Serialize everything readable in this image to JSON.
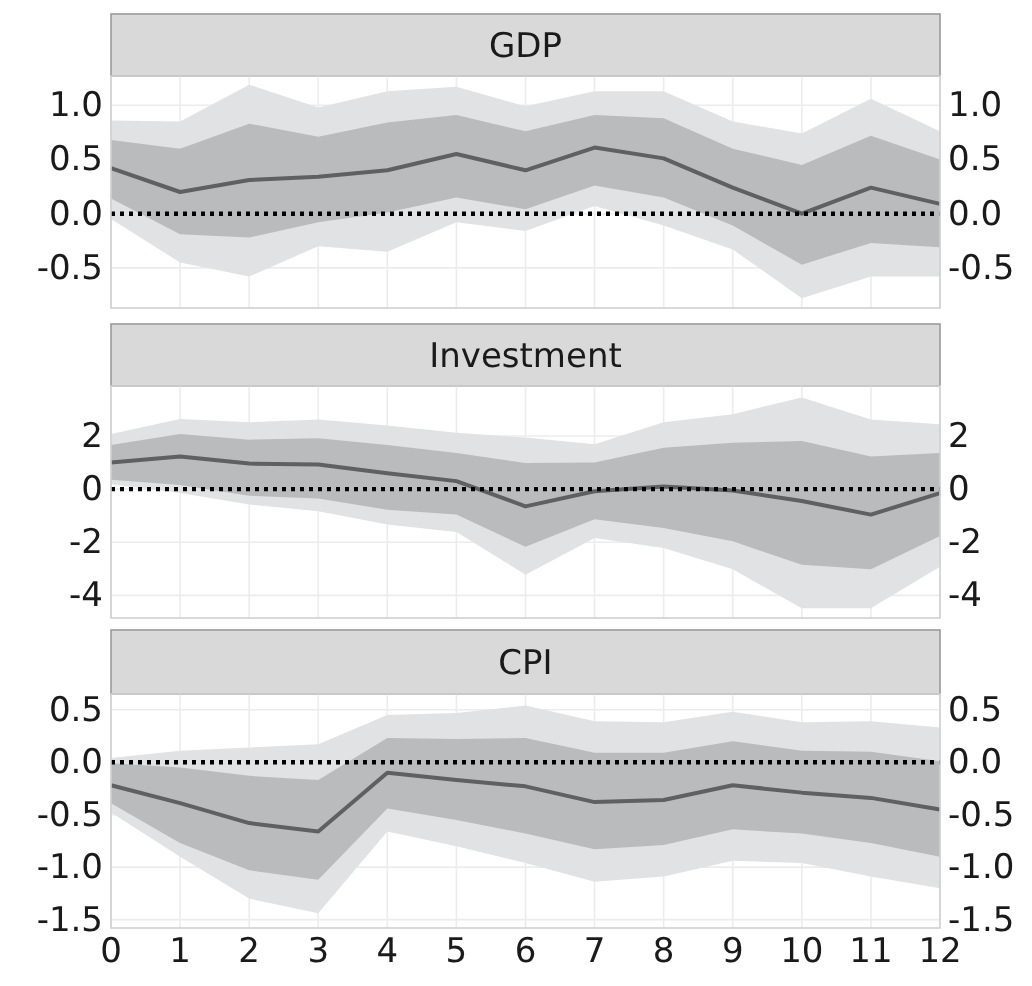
{
  "chart_data": [
    {
      "type": "line",
      "title": "GDP",
      "x": [
        0,
        1,
        2,
        3,
        4,
        5,
        6,
        7,
        8,
        9,
        10,
        11,
        12
      ],
      "xlim": [
        0,
        12
      ],
      "xticks": [
        0,
        1,
        2,
        3,
        4,
        5,
        6,
        7,
        8,
        9,
        10,
        11,
        12
      ],
      "ylim": [
        -0.87,
        1.27
      ],
      "yticks": [
        {
          "value": -0.5,
          "label": "-0.5"
        },
        {
          "value": 0,
          "label": "0.0"
        },
        {
          "value": 0.5,
          "label": "0.5"
        },
        {
          "value": 1,
          "label": "1.0"
        }
      ],
      "y2lim": [
        -0.87,
        1.27
      ],
      "y2ticks": [
        {
          "value": -0.5,
          "label": "-0.5"
        },
        {
          "value": 0,
          "label": "0.0"
        },
        {
          "value": 0.5,
          "label": "0.5"
        },
        {
          "value": 1,
          "label": "1.0"
        }
      ],
      "tick_labels": "y",
      "grid": true,
      "ref_lines": [
        {
          "axis": "y",
          "value": 0,
          "color": "#000000",
          "line_style": "dotted"
        }
      ],
      "series": [
        {
          "type": "line",
          "color": "#e1e2e3",
          "values": [
            null,
            null,
            null,
            null,
            null,
            null,
            null,
            null,
            null,
            null,
            null,
            null,
            null
          ],
          "lower": [
            -0.05,
            -0.45,
            -0.58,
            -0.3,
            -0.35,
            -0.08,
            -0.16,
            0.07,
            -0.11,
            -0.33,
            -0.78,
            -0.58,
            -0.58
          ],
          "upper": [
            0.86,
            0.85,
            1.19,
            0.98,
            1.13,
            1.17,
            0.99,
            1.13,
            1.13,
            0.85,
            0.74,
            1.06,
            0.76
          ]
        },
        {
          "type": "line",
          "color": "#5f6062",
          "values": [
            0.42,
            0.2,
            0.31,
            0.34,
            0.4,
            0.55,
            0.4,
            0.61,
            0.51,
            0.24,
            0.0,
            0.24,
            0.09
          ],
          "lower": [
            0.14,
            -0.19,
            -0.22,
            -0.08,
            0.01,
            0.15,
            0.04,
            0.26,
            0.15,
            -0.11,
            -0.47,
            -0.27,
            -0.31
          ],
          "upper": [
            0.68,
            0.6,
            0.83,
            0.71,
            0.84,
            0.91,
            0.76,
            0.91,
            0.88,
            0.6,
            0.45,
            0.72,
            0.5
          ]
        }
      ]
    },
    {
      "type": "line",
      "title": "Investment",
      "x": [
        0,
        1,
        2,
        3,
        4,
        5,
        6,
        7,
        8,
        9,
        10,
        11,
        12
      ],
      "xlim": [
        0,
        12
      ],
      "xticks": [
        0,
        1,
        2,
        3,
        4,
        5,
        6,
        7,
        8,
        9,
        10,
        11,
        12
      ],
      "ylim": [
        -4.85,
        3.88
      ],
      "yticks": [
        -4,
        -2,
        0,
        2
      ],
      "y2lim": [
        -4.85,
        3.88
      ],
      "y2ticks": [
        -4,
        -2,
        0,
        2
      ],
      "tick_labels": "y",
      "grid": true,
      "ref_lines": [
        {
          "axis": "y",
          "value": 0,
          "color": "#000000",
          "line_style": "dotted"
        }
      ],
      "series": [
        {
          "type": "line",
          "color": "#e1e2e3",
          "values": [
            null,
            null,
            null,
            null,
            null,
            null,
            null,
            null,
            null,
            null,
            null,
            null,
            null
          ],
          "lower": [
            0.18,
            -0.15,
            -0.58,
            -0.83,
            -1.33,
            -1.61,
            -3.22,
            -1.84,
            -2.22,
            -3.02,
            -4.48,
            -4.48,
            -2.92
          ],
          "upper": [
            2.07,
            2.64,
            2.52,
            2.62,
            2.39,
            2.12,
            1.94,
            1.69,
            2.52,
            2.82,
            3.45,
            2.62,
            2.44
          ]
        },
        {
          "type": "line",
          "color": "#5f6062",
          "values": [
            1.0,
            1.23,
            0.96,
            0.93,
            0.6,
            0.3,
            -0.65,
            -0.08,
            0.1,
            -0.05,
            -0.45,
            -0.96,
            -0.15
          ],
          "lower": [
            0.35,
            0.15,
            -0.25,
            -0.35,
            -0.78,
            -0.96,
            -2.17,
            -1.13,
            -1.46,
            -1.96,
            -2.85,
            -3.02,
            -1.76
          ],
          "upper": [
            1.66,
            2.07,
            1.86,
            1.91,
            1.66,
            1.36,
            0.98,
            1.0,
            1.56,
            1.74,
            1.81,
            1.23,
            1.36
          ]
        }
      ]
    },
    {
      "type": "line",
      "title": "CPI",
      "x": [
        0,
        1,
        2,
        3,
        4,
        5,
        6,
        7,
        8,
        9,
        10,
        11,
        12
      ],
      "xlim": [
        0,
        12
      ],
      "xticks": [
        0,
        1,
        2,
        3,
        4,
        5,
        6,
        7,
        8,
        9,
        10,
        11,
        12
      ],
      "ylim": [
        -1.58,
        0.65
      ],
      "yticks": [
        {
          "value": -1.5,
          "label": "-1.5"
        },
        {
          "value": -1,
          "label": "-1.0"
        },
        {
          "value": -0.5,
          "label": "-0.5"
        },
        {
          "value": 0,
          "label": "0.0"
        },
        {
          "value": 0.5,
          "label": "0.5"
        }
      ],
      "y2lim": [
        -1.58,
        0.65
      ],
      "y2ticks": [
        {
          "value": -1.5,
          "label": "-1.5"
        },
        {
          "value": -1,
          "label": "-1.0"
        },
        {
          "value": -0.5,
          "label": "-0.5"
        },
        {
          "value": 0,
          "label": "0.0"
        },
        {
          "value": 0.5,
          "label": "0.5"
        }
      ],
      "grid": true,
      "ref_lines": [
        {
          "axis": "y",
          "value": 0,
          "color": "#000000",
          "line_style": "dotted"
        }
      ],
      "series": [
        {
          "type": "line",
          "color": "#e1e2e3",
          "values": [
            null,
            null,
            null,
            null,
            null,
            null,
            null,
            null,
            null,
            null,
            null,
            null,
            null
          ],
          "lower": [
            -0.48,
            -0.9,
            -1.3,
            -1.44,
            -0.66,
            -0.8,
            -0.96,
            -1.14,
            -1.09,
            -0.94,
            -0.96,
            -1.09,
            -1.2
          ],
          "upper": [
            0.04,
            0.11,
            0.14,
            0.17,
            0.45,
            0.47,
            0.54,
            0.39,
            0.38,
            0.48,
            0.38,
            0.39,
            0.33
          ]
        },
        {
          "type": "line",
          "color": "#5f6062",
          "values": [
            -0.22,
            -0.39,
            -0.58,
            -0.66,
            -0.1,
            -0.17,
            -0.23,
            -0.38,
            -0.36,
            -0.22,
            -0.29,
            -0.34,
            -0.45
          ],
          "lower": [
            -0.39,
            -0.77,
            -1.03,
            -1.12,
            -0.44,
            -0.55,
            -0.68,
            -0.83,
            -0.79,
            -0.64,
            -0.68,
            -0.77,
            -0.9
          ],
          "upper": [
            -0.01,
            -0.05,
            -0.13,
            -0.17,
            0.23,
            0.22,
            0.23,
            0.09,
            0.09,
            0.2,
            0.11,
            0.1,
            0.01
          ]
        }
      ]
    }
  ]
}
